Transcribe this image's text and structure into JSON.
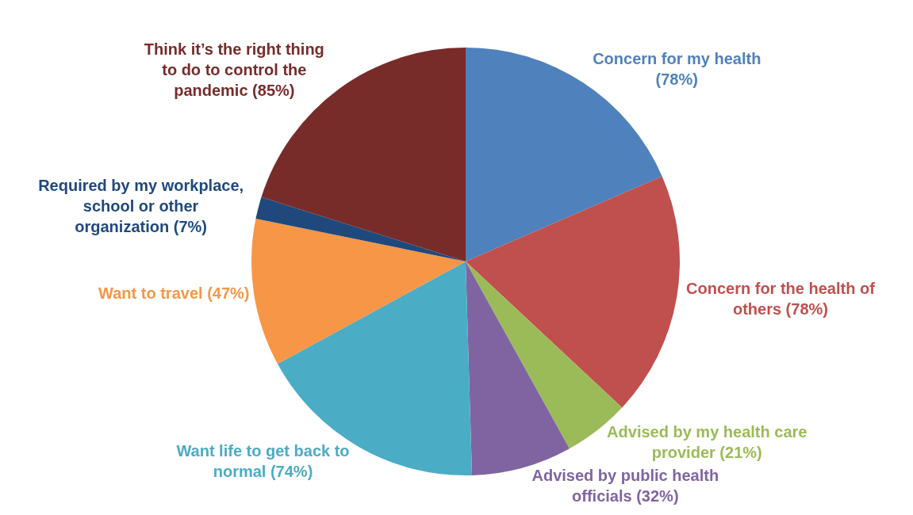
{
  "chart_data": {
    "type": "pie",
    "categories": [
      "Concern for my health",
      "Concern for the health of others",
      "Advised by my health care provider",
      "Advised by public health officials",
      "Want life to get back to normal",
      "Want to travel",
      "Required by my workplace, school or other organization",
      "Think it’s the right thing to do to control the pandemic"
    ],
    "values": [
      78,
      78,
      21,
      32,
      74,
      47,
      7,
      85
    ],
    "value_labels": [
      "(78%)",
      "(78%)",
      "(21%)",
      "(32%)",
      "(74%)",
      "(47%)",
      "(7%)",
      "(85%)"
    ],
    "colors": [
      "#4f81bd",
      "#c0504d",
      "#9bbb59",
      "#8064a2",
      "#4bacc6",
      "#f79646",
      "#1f497d",
      "#772c2a"
    ],
    "legend": false
  }
}
